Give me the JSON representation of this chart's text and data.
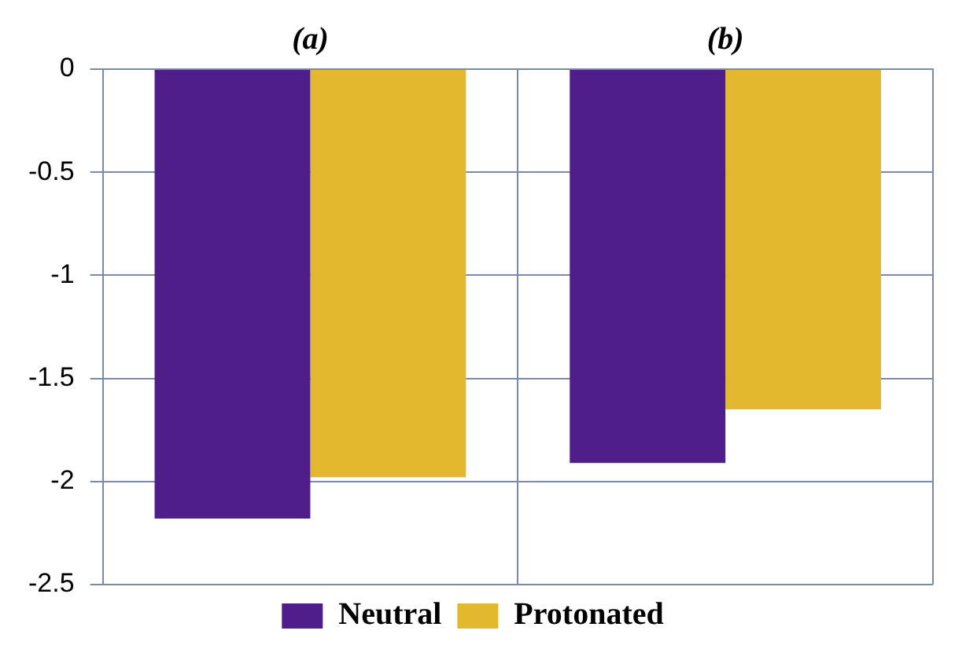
{
  "chart_data": {
    "type": "bar",
    "categories": [
      "(a)",
      "(b)"
    ],
    "series": [
      {
        "name": "Neutral",
        "color": "#4f1e8a",
        "values": [
          -2.18,
          -1.91
        ]
      },
      {
        "name": "Protonated",
        "color": "#e4b82c",
        "values": [
          -1.98,
          -1.65
        ]
      }
    ],
    "ylim": [
      -2.5,
      0
    ],
    "yticks": [
      0,
      -0.5,
      -1,
      -1.5,
      -2,
      -2.5
    ],
    "grid": true,
    "legend": "bottom"
  }
}
